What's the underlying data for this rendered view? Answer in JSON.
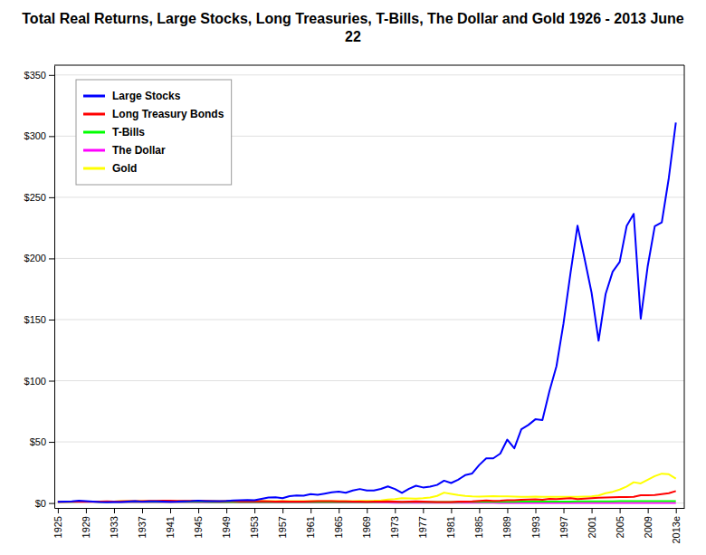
{
  "chart_data": {
    "type": "line",
    "title": "Total Real Returns, Large Stocks, Long Treasuries, T-Bills, The Dollar and Gold 1926 - 2013 June 22",
    "x": [
      1925,
      1926,
      1927,
      1928,
      1929,
      1930,
      1931,
      1932,
      1933,
      1934,
      1935,
      1936,
      1937,
      1938,
      1939,
      1940,
      1941,
      1942,
      1943,
      1944,
      1945,
      1946,
      1947,
      1948,
      1949,
      1950,
      1951,
      1952,
      1953,
      1954,
      1955,
      1956,
      1957,
      1958,
      1959,
      1960,
      1961,
      1962,
      1963,
      1964,
      1965,
      1966,
      1967,
      1968,
      1969,
      1970,
      1971,
      1972,
      1973,
      1974,
      1975,
      1976,
      1977,
      1978,
      1979,
      1980,
      1981,
      1982,
      1983,
      1984,
      1985,
      1986,
      1987,
      1988,
      1989,
      1990,
      1991,
      1992,
      1993,
      1994,
      1995,
      1996,
      1997,
      1998,
      1999,
      2000,
      2001,
      2002,
      2003,
      2004,
      2005,
      2006,
      2007,
      2008,
      2009,
      2010,
      2011,
      2012,
      2013
    ],
    "series": [
      {
        "name": "Large Stocks",
        "color": "#0000FF",
        "values": [
          1.0,
          1.15,
          1.42,
          1.9,
          1.58,
          1.17,
          0.77,
          0.66,
          0.88,
          0.85,
          1.14,
          1.52,
          1.09,
          1.37,
          1.35,
          1.24,
          1.03,
          1.12,
          1.36,
          1.53,
          1.96,
          1.6,
          1.47,
          1.47,
          1.68,
          2.1,
          2.34,
          2.48,
          2.35,
          3.46,
          4.54,
          4.67,
          4.01,
          5.64,
          6.12,
          5.99,
          7.36,
          6.67,
          7.68,
          8.7,
          9.4,
          8.35,
          10.23,
          11.44,
          10.23,
          10.3,
          11.55,
          13.55,
          11.49,
          8.23,
          11.68,
          14.11,
          12.73,
          13.42,
          14.77,
          18.27,
          16.36,
          19.09,
          22.8,
          24.15,
          31.06,
          36.55,
          36.56,
          40.42,
          51.87,
          44.75,
          60.35,
          63.83,
          68.46,
          67.88,
          91.48,
          111.83,
          146.68,
          188.01,
          226.79,
          199.96,
          172.01,
          132.77,
          170.91,
          189.09,
          197.05,
          226.61,
          236.44,
          150.7,
          193.87,
          226.37,
          229.54,
          265.84,
          311.0
        ]
      },
      {
        "name": "Long Treasury Bonds",
        "color": "#FF0000",
        "values": [
          1.0,
          1.04,
          1.13,
          1.1,
          1.14,
          1.22,
          1.14,
          1.32,
          1.27,
          1.39,
          1.5,
          1.6,
          1.49,
          1.7,
          1.83,
          1.99,
          1.86,
          1.71,
          1.67,
          1.68,
          1.8,
          1.68,
          1.5,
          1.44,
          1.59,
          1.53,
          1.38,
          1.4,
          1.34,
          1.51,
          1.4,
          1.27,
          1.37,
          1.24,
          1.13,
          1.24,
          1.37,
          1.49,
          1.46,
          1.5,
          1.44,
          1.4,
          1.27,
          1.23,
          1.07,
          1.15,
          1.27,
          1.31,
          1.13,
          1.0,
          1.14,
          1.32,
          1.13,
          1.01,
          0.9,
          0.8,
          0.85,
          1.16,
          1.2,
          1.31,
          1.7,
          2.12,
          1.76,
          1.89,
          2.28,
          2.25,
          2.59,
          2.77,
          3.04,
          2.66,
          3.39,
          3.28,
          3.59,
          3.89,
          3.28,
          3.58,
          3.96,
          4.34,
          4.51,
          4.62,
          4.81,
          4.96,
          5.1,
          6.36,
          6.44,
          6.61,
          7.28,
          8.03,
          9.8
        ]
      },
      {
        "name": "T-Bills",
        "color": "#00FF00",
        "values": [
          1.0,
          1.03,
          1.06,
          1.09,
          1.12,
          1.1,
          1.07,
          1.05,
          1.03,
          1.01,
          1.01,
          1.01,
          1.02,
          1.01,
          1.01,
          1.01,
          1.0,
          0.97,
          0.96,
          0.95,
          0.94,
          0.91,
          0.87,
          0.85,
          0.86,
          0.85,
          0.83,
          0.83,
          0.83,
          0.83,
          0.84,
          0.84,
          0.86,
          0.84,
          0.85,
          0.86,
          0.87,
          0.88,
          0.88,
          0.89,
          0.9,
          0.9,
          0.9,
          0.9,
          0.89,
          0.9,
          0.91,
          0.93,
          0.91,
          0.87,
          0.89,
          0.91,
          0.89,
          0.88,
          0.86,
          0.85,
          0.85,
          0.89,
          0.92,
          0.93,
          0.96,
          0.99,
          1.01,
          1.03,
          1.06,
          1.07,
          1.1,
          1.12,
          1.14,
          1.15,
          1.18,
          1.21,
          1.24,
          1.27,
          1.3,
          1.34,
          1.37,
          1.39,
          1.42,
          1.44,
          1.47,
          1.51,
          1.55,
          1.56,
          1.57,
          1.58,
          1.59,
          1.6,
          1.61
        ]
      },
      {
        "name": "The Dollar",
        "color": "#FF00FF",
        "values": [
          1.0,
          0.99,
          0.99,
          0.98,
          0.98,
          0.97,
          0.95,
          0.94,
          0.9,
          0.88,
          0.87,
          0.87,
          0.87,
          0.87,
          0.87,
          0.86,
          0.84,
          0.79,
          0.75,
          0.72,
          0.7,
          0.63,
          0.58,
          0.56,
          0.57,
          0.56,
          0.53,
          0.52,
          0.52,
          0.52,
          0.52,
          0.51,
          0.5,
          0.49,
          0.48,
          0.48,
          0.47,
          0.47,
          0.46,
          0.46,
          0.45,
          0.44,
          0.43,
          0.41,
          0.39,
          0.37,
          0.36,
          0.35,
          0.33,
          0.3,
          0.28,
          0.26,
          0.25,
          0.23,
          0.21,
          0.18,
          0.17,
          0.17,
          0.17,
          0.17,
          0.17,
          0.17,
          0.17,
          0.16,
          0.16,
          0.15,
          0.15,
          0.15,
          0.15,
          0.15,
          0.15,
          0.15,
          0.15,
          0.15,
          0.15,
          0.14,
          0.14,
          0.14,
          0.14,
          0.14,
          0.14,
          0.13,
          0.13,
          0.13,
          0.13,
          0.13,
          0.12,
          0.12,
          0.12
        ]
      },
      {
        "name": "Gold",
        "color": "#FFFF00",
        "values": [
          1.0,
          1.0,
          1.0,
          1.0,
          1.0,
          1.0,
          1.0,
          1.0,
          1.2,
          1.6,
          1.6,
          1.6,
          1.6,
          1.6,
          1.6,
          1.6,
          1.6,
          1.6,
          1.6,
          1.6,
          1.6,
          1.6,
          1.55,
          1.55,
          1.55,
          1.55,
          1.51,
          1.51,
          1.51,
          1.51,
          1.51,
          1.51,
          1.51,
          1.51,
          1.51,
          1.51,
          1.51,
          1.51,
          1.51,
          1.51,
          1.51,
          1.51,
          1.6,
          1.75,
          1.75,
          1.89,
          2.18,
          2.8,
          3.2,
          4.0,
          3.8,
          3.5,
          3.9,
          4.5,
          5.8,
          8.5,
          7.5,
          6.5,
          5.8,
          5.4,
          5.3,
          5.4,
          5.6,
          5.5,
          5.5,
          5.2,
          5.0,
          5.0,
          5.2,
          5.0,
          5.0,
          5.0,
          5.0,
          5.1,
          5.0,
          5.2,
          5.5,
          6.2,
          8.0,
          9.2,
          11.0,
          13.5,
          17.0,
          16.0,
          19.0,
          22.0,
          24.0,
          23.5,
          20.0
        ]
      }
    ],
    "xlim": [
      1924.5,
      2014.2
    ],
    "xticks": [
      1925,
      1929,
      1933,
      1937,
      1941,
      1945,
      1949,
      1953,
      1957,
      1961,
      1965,
      1969,
      1973,
      1977,
      1981,
      1985,
      1989,
      1993,
      1997,
      2001,
      2005,
      2009,
      {
        "value": 2013,
        "label": "2013e"
      }
    ],
    "ylim": [
      -4,
      358
    ],
    "yticks": [
      {
        "value": 0,
        "label": "$0"
      },
      {
        "value": 50,
        "label": "$50"
      },
      {
        "value": 100,
        "label": "$100"
      },
      {
        "value": 150,
        "label": "$150"
      },
      {
        "value": 200,
        "label": "$200"
      },
      {
        "value": 250,
        "label": "$250"
      },
      {
        "value": 300,
        "label": "$300"
      },
      {
        "value": 350,
        "label": "$350"
      }
    ],
    "grid": true,
    "legend": "upper left"
  }
}
